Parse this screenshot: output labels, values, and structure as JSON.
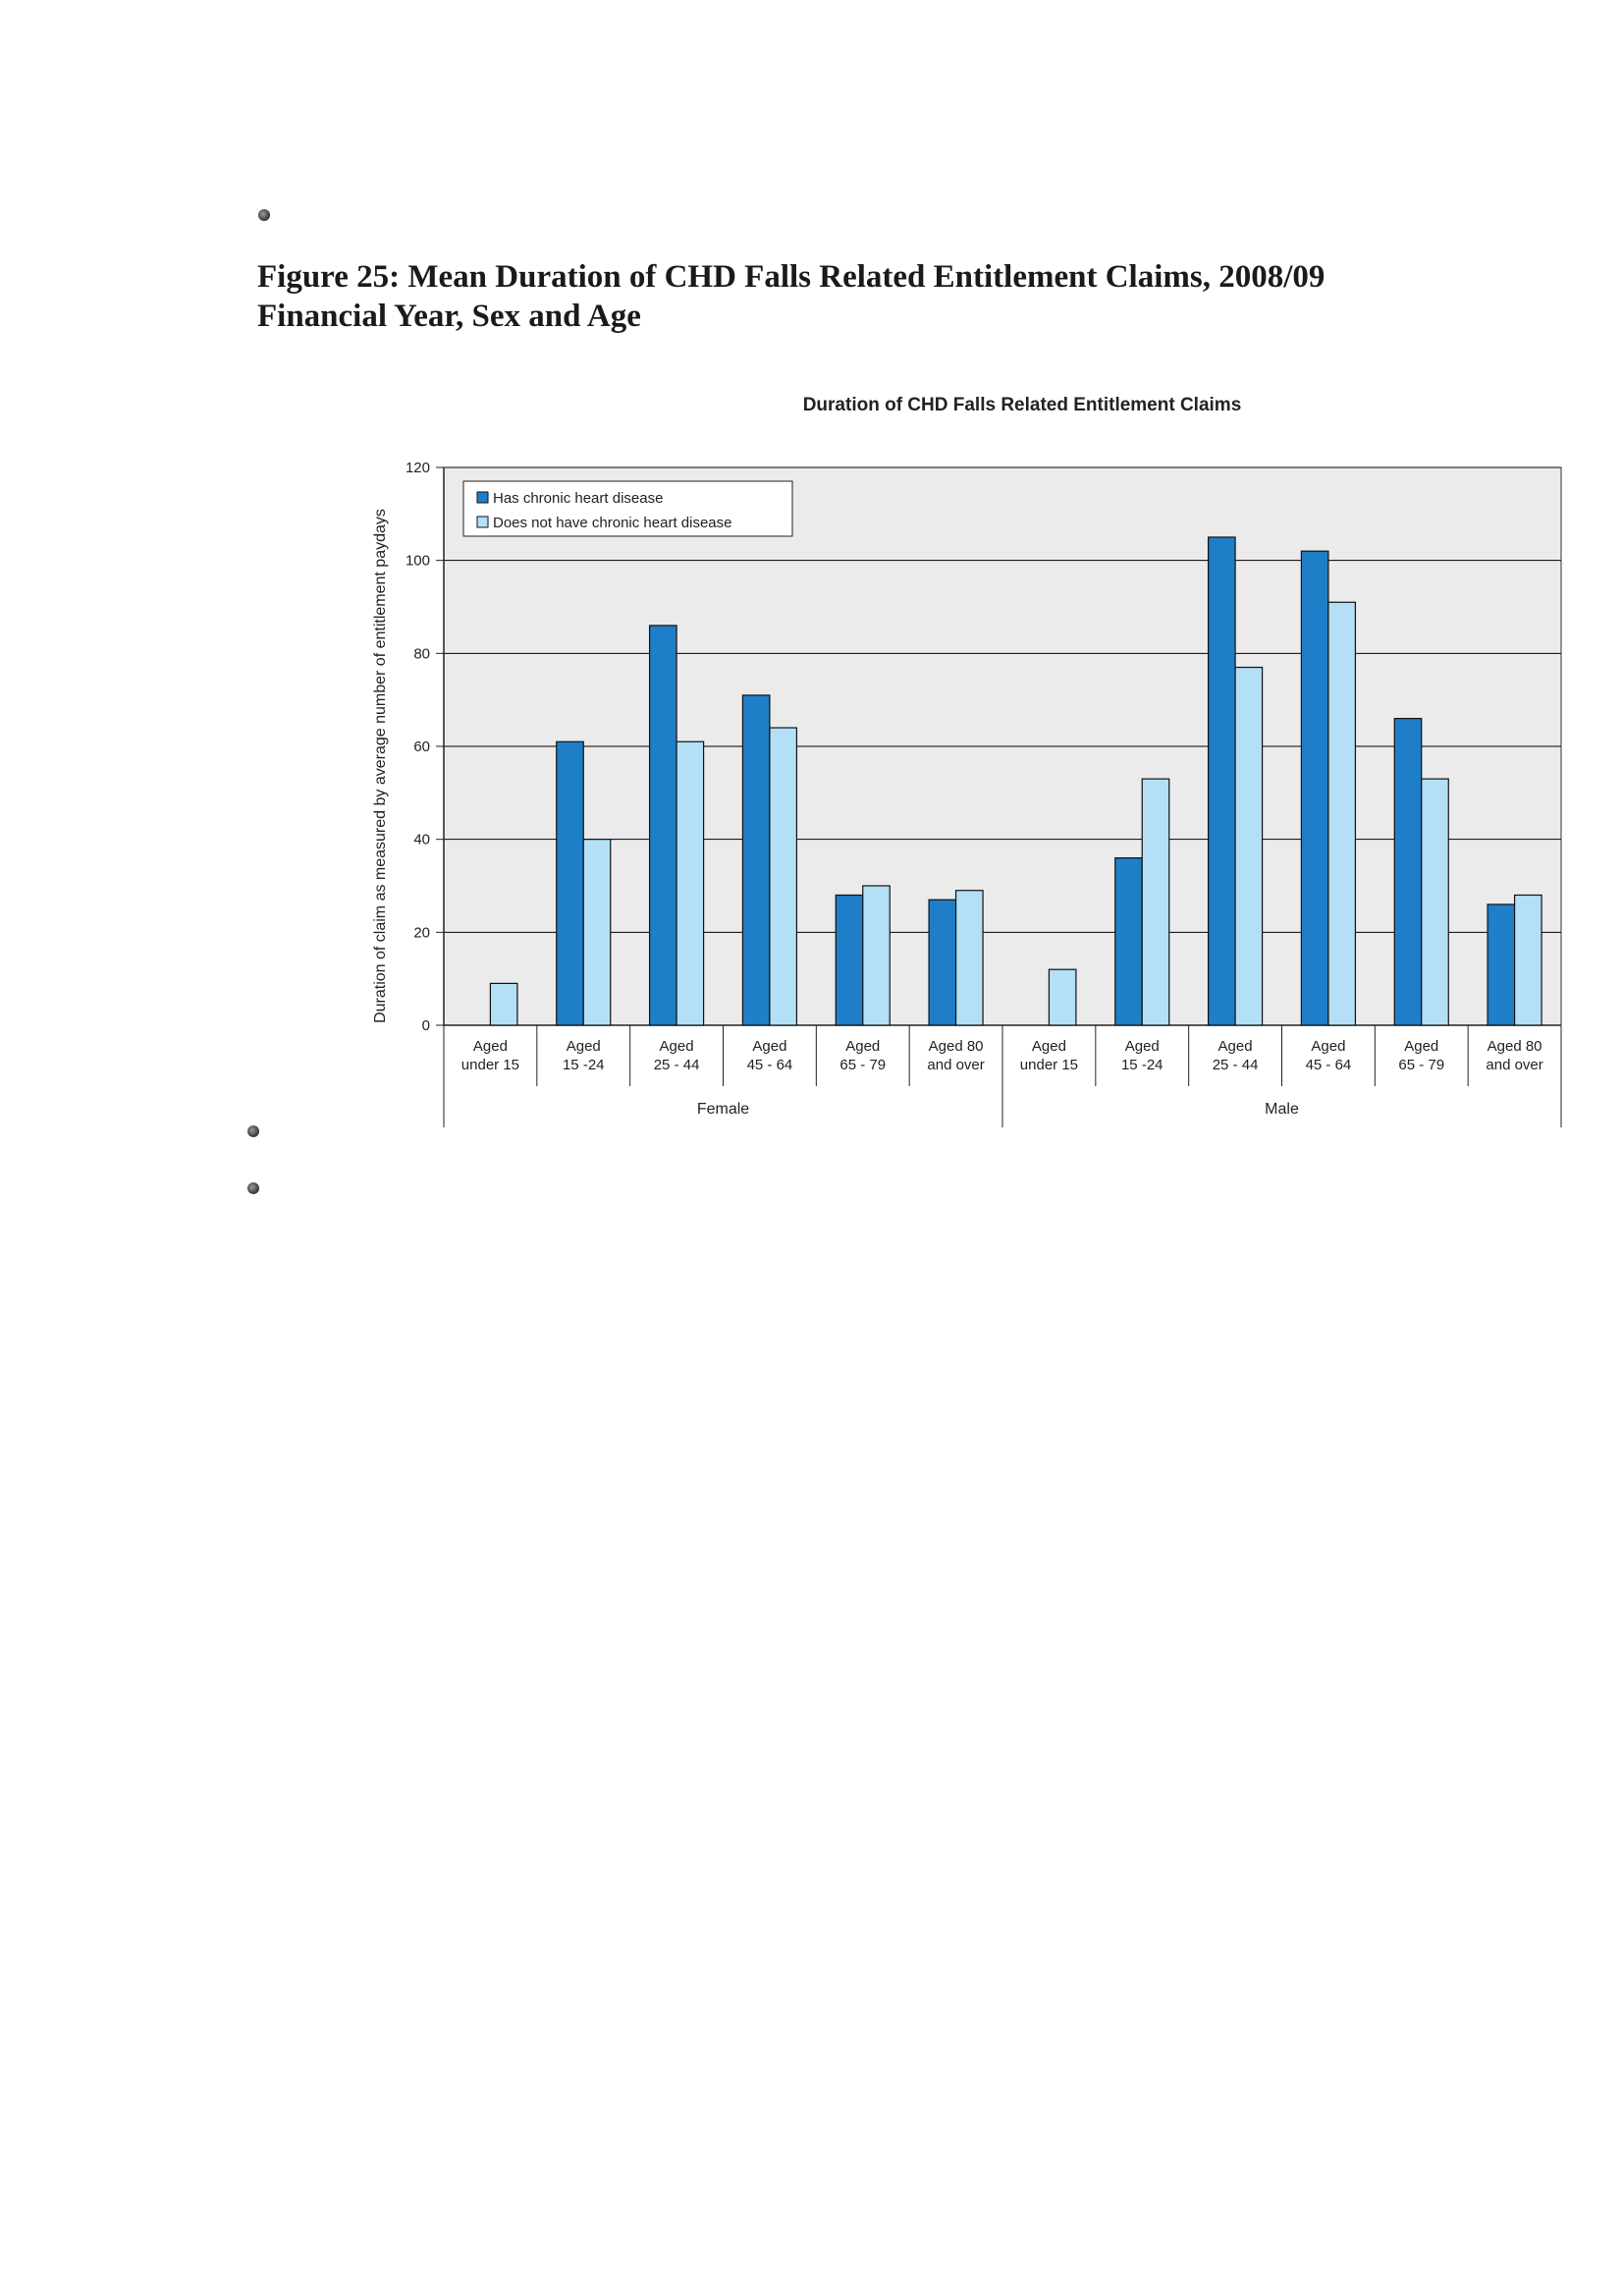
{
  "figure": {
    "line1": "Figure 25:  Mean Duration of CHD Falls Related Entitlement Claims, 2008/09",
    "line2": "Financial Year, Sex and Age"
  },
  "colors": {
    "has_chd": "#1e7fc8",
    "no_chd": "#b3e0f7",
    "plot_bg": "#ebebeb",
    "grid": "#000000"
  },
  "chart_data": {
    "type": "bar",
    "title": "Duration of CHD Falls Related Entitlement Claims",
    "ylabel": "Duration of claim as measured by average number of entitlement paydays",
    "xlabel": "",
    "ylim": [
      0,
      120
    ],
    "yticks": [
      0,
      20,
      40,
      60,
      80,
      100,
      120
    ],
    "grid": true,
    "legend_position": "top-left",
    "groups": [
      {
        "name": "Female",
        "categories": [
          0,
          1,
          2,
          3,
          4,
          5
        ]
      },
      {
        "name": "Male",
        "categories": [
          6,
          7,
          8,
          9,
          10,
          11
        ]
      }
    ],
    "categories": [
      [
        "Aged",
        "under 15"
      ],
      [
        "Aged",
        "15 -24"
      ],
      [
        "Aged",
        "25 - 44"
      ],
      [
        "Aged",
        "45 - 64"
      ],
      [
        "Aged",
        "65 - 79"
      ],
      [
        "Aged 80",
        "and over"
      ],
      [
        "Aged",
        "under 15"
      ],
      [
        "Aged",
        "15 -24"
      ],
      [
        "Aged",
        "25 - 44"
      ],
      [
        "Aged",
        "45 - 64"
      ],
      [
        "Aged",
        "65 - 79"
      ],
      [
        "Aged 80",
        "and over"
      ]
    ],
    "series": [
      {
        "name": "Has chronic heart disease",
        "values": [
          0,
          61,
          86,
          71,
          28,
          27,
          0,
          36,
          105,
          102,
          66,
          26
        ]
      },
      {
        "name": "Does not have chronic heart disease",
        "values": [
          9,
          40,
          61,
          64,
          30,
          29,
          12,
          53,
          77,
          91,
          53,
          28
        ]
      }
    ]
  }
}
